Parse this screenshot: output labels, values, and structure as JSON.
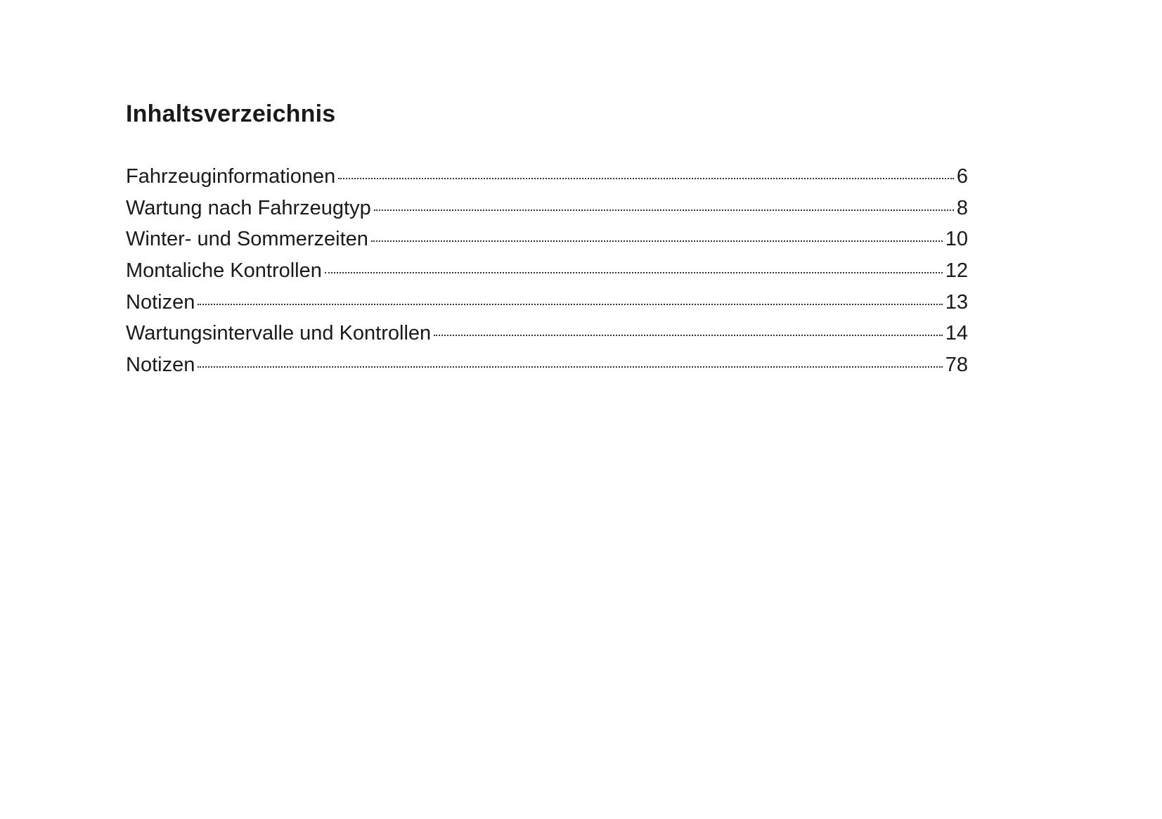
{
  "title": "Inhaltsverzeichnis",
  "entries": [
    {
      "label": "Fahrzeuginformationen",
      "page": "6"
    },
    {
      "label": "Wartung nach Fahrzeugtyp",
      "page": "8"
    },
    {
      "label": "Winter- und Sommerzeiten",
      "page": "10"
    },
    {
      "label": "Montaliche Kontrollen",
      "page": "12"
    },
    {
      "label": "Notizen",
      "page": "13"
    },
    {
      "label": "Wartungsintervalle und Kontrollen",
      "page": "14"
    },
    {
      "label": "Notizen",
      "page": "78"
    }
  ]
}
